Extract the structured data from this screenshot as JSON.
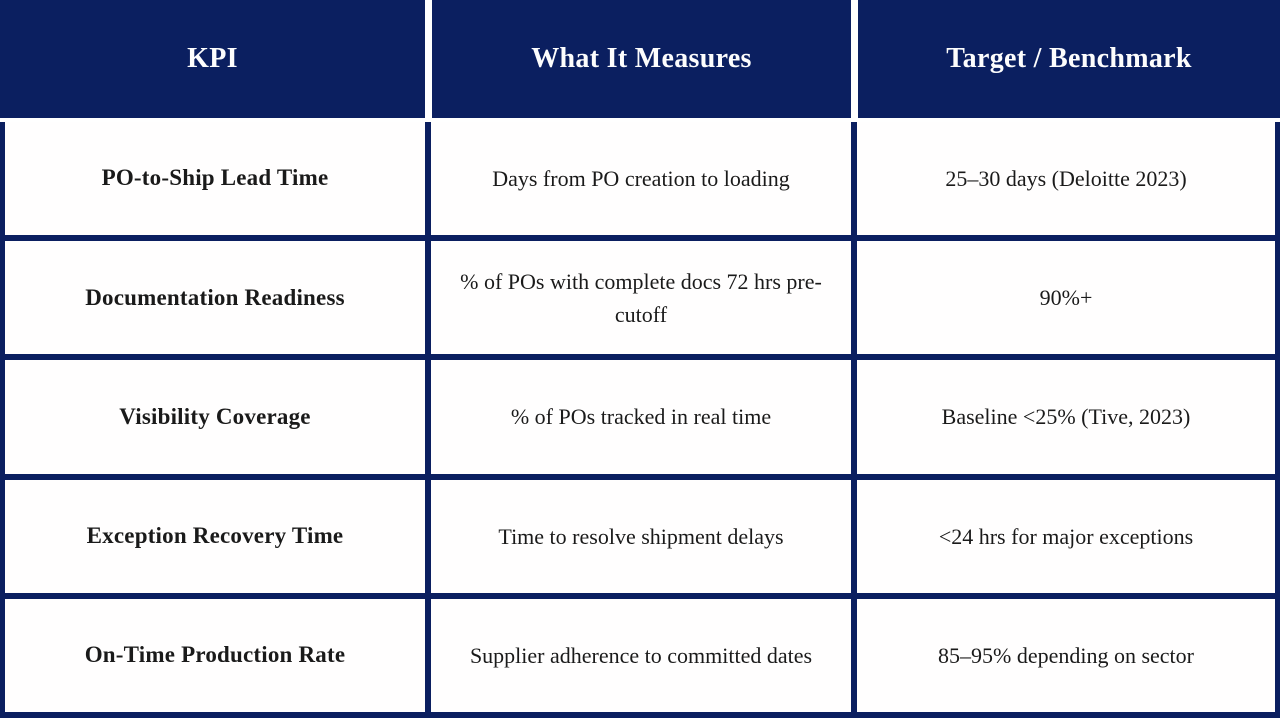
{
  "colors": {
    "navy": "#0b1f60",
    "cell_background": "#ffffff",
    "header_text": "#ffffff",
    "body_text": "#1a1a1a"
  },
  "table": {
    "headers": [
      "KPI",
      "What It Measures",
      "Target / Benchmark"
    ],
    "rows": [
      {
        "kpi": "PO-to-Ship Lead Time",
        "measures": "Days from PO creation to loading",
        "target": "25–30 days (Deloitte 2023)"
      },
      {
        "kpi": "Documentation Readiness",
        "measures": "% of POs with complete docs 72 hrs pre-cutoff",
        "target": "90%+"
      },
      {
        "kpi": "Visibility Coverage",
        "measures": "% of POs tracked in real time",
        "target": "Baseline <25% (Tive, 2023)"
      },
      {
        "kpi": "Exception Recovery Time",
        "measures": "Time to resolve shipment delays",
        "target": "<24 hrs for major exceptions"
      },
      {
        "kpi": "On-Time Production Rate",
        "measures": "Supplier adherence to committed dates",
        "target": "85–95% depending on sector"
      }
    ]
  }
}
